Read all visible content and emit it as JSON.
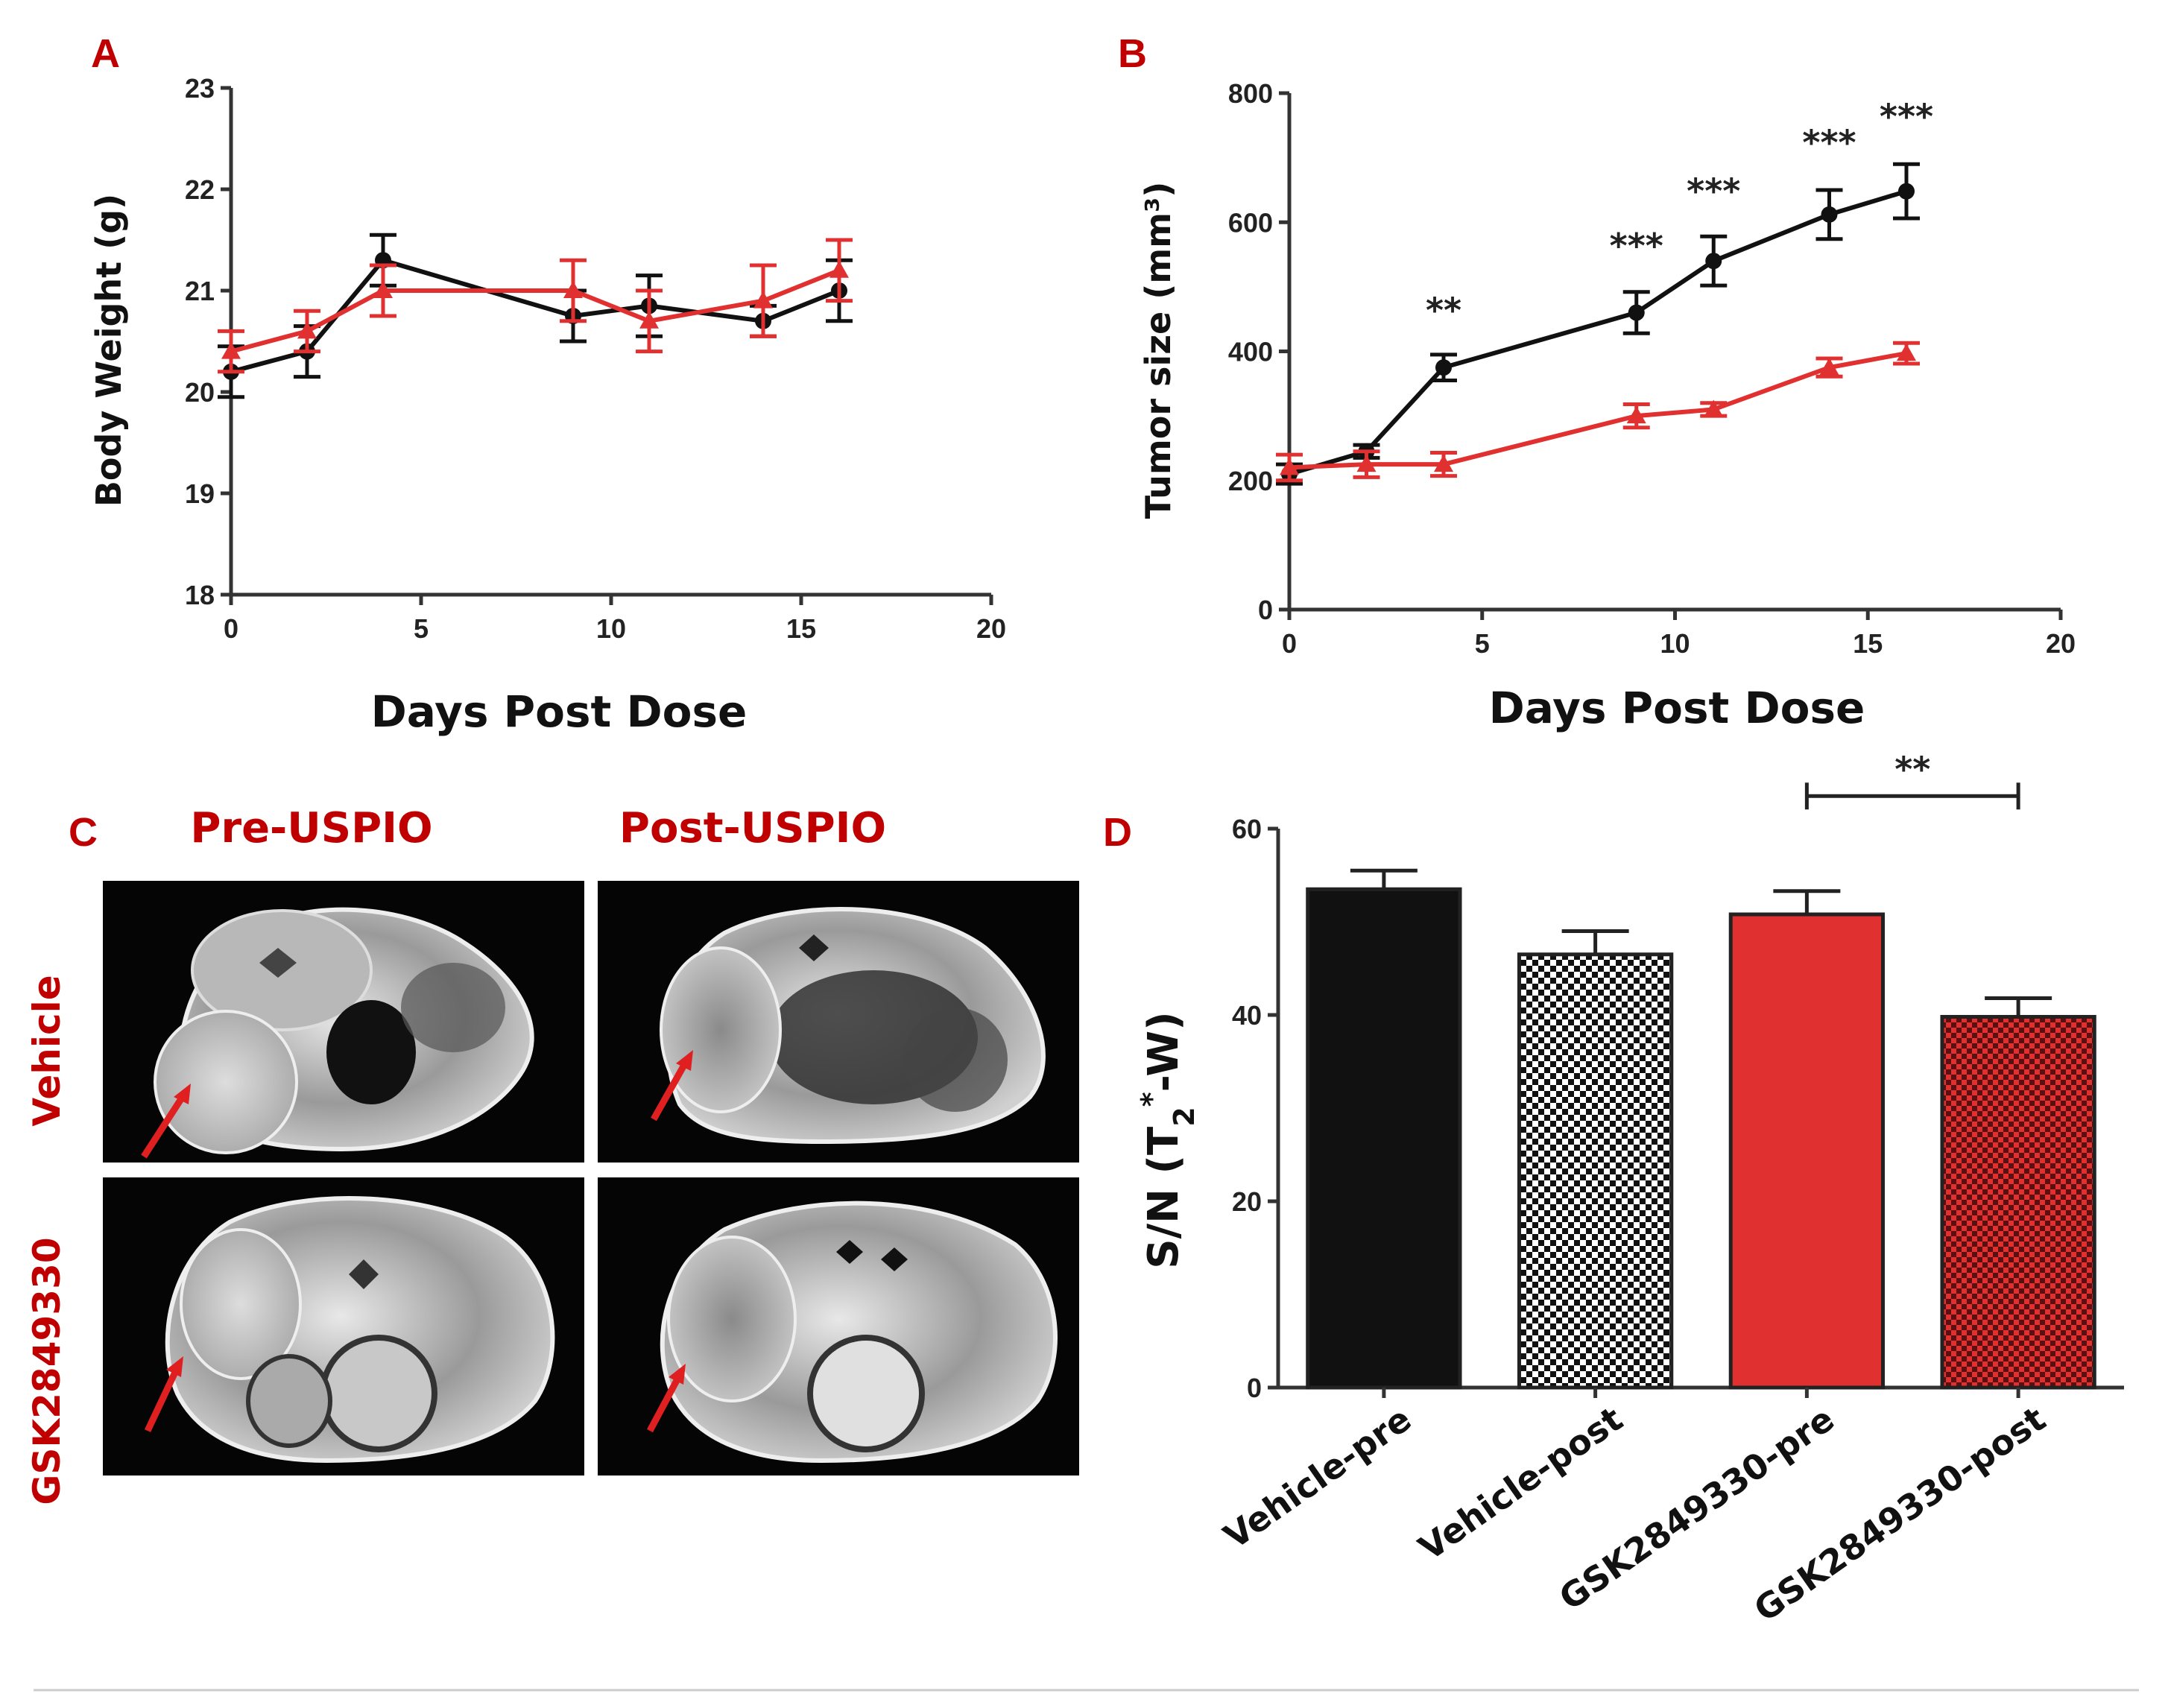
{
  "panels": {
    "a": "A",
    "b": "B",
    "c": "C",
    "d": "D"
  },
  "colors": {
    "vehicle": "#111111",
    "treated": "#e03030",
    "label_red": "#c00000"
  },
  "chart_data": [
    {
      "id": "A",
      "type": "line",
      "xlabel": "Days Post Dose",
      "ylabel": "Body Weight (g)",
      "xlim": [
        0,
        20
      ],
      "ylim": [
        18,
        23
      ],
      "xticks": [
        0,
        5,
        10,
        15,
        20
      ],
      "yticks": [
        18,
        19,
        20,
        21,
        22,
        23
      ],
      "series": [
        {
          "name": "Vehicle",
          "color": "#111111",
          "marker": "circle",
          "x": [
            0,
            2,
            4,
            9,
            11,
            14,
            16
          ],
          "y": [
            20.2,
            20.4,
            21.3,
            20.75,
            20.85,
            20.7,
            21.0
          ],
          "err": [
            0.25,
            0.25,
            0.25,
            0.25,
            0.3,
            0.15,
            0.3
          ]
        },
        {
          "name": "GSK2849330",
          "color": "#e03030",
          "marker": "triangle",
          "x": [
            0,
            2,
            4,
            9,
            11,
            14,
            16
          ],
          "y": [
            20.4,
            20.6,
            21.0,
            21.0,
            20.7,
            20.9,
            21.2
          ],
          "err": [
            0.2,
            0.2,
            0.25,
            0.3,
            0.3,
            0.35,
            0.3
          ]
        }
      ]
    },
    {
      "id": "B",
      "type": "line",
      "xlabel": "Days Post Dose",
      "ylabel": "Tumor size (mm³)",
      "xlim": [
        0,
        20
      ],
      "ylim": [
        0,
        800
      ],
      "xticks": [
        0,
        5,
        10,
        15,
        20
      ],
      "yticks": [
        0,
        200,
        400,
        600,
        800
      ],
      "series": [
        {
          "name": "Vehicle",
          "color": "#111111",
          "marker": "circle",
          "x": [
            0,
            2,
            4,
            9,
            11,
            14,
            16
          ],
          "y": [
            210,
            245,
            375,
            460,
            540,
            612,
            648
          ],
          "err": [
            15,
            10,
            20,
            32,
            38,
            38,
            42
          ]
        },
        {
          "name": "GSK2849330",
          "color": "#e03030",
          "marker": "triangle",
          "x": [
            0,
            2,
            4,
            9,
            11,
            14,
            16
          ],
          "y": [
            220,
            225,
            225,
            300,
            310,
            375,
            397
          ],
          "err": [
            20,
            20,
            18,
            18,
            10,
            14,
            16
          ]
        }
      ],
      "annotations": [
        {
          "x": 4,
          "y": 445,
          "text": "**"
        },
        {
          "x": 9,
          "y": 545,
          "text": "***"
        },
        {
          "x": 11,
          "y": 630,
          "text": "***"
        },
        {
          "x": 14,
          "y": 705,
          "text": "***"
        },
        {
          "x": 16,
          "y": 745,
          "text": "***"
        }
      ]
    },
    {
      "id": "D",
      "type": "bar",
      "ylabel_main": "S/N (T",
      "ylabel_sub": "2",
      "ylabel_sup": "*",
      "ylabel_tail": "-W)",
      "ylim": [
        0,
        60
      ],
      "yticks": [
        0,
        20,
        40,
        60
      ],
      "categories": [
        "Vehicle-pre",
        "Vehicle-post",
        "GSK2849330-pre",
        "GSK2849330-post"
      ],
      "values": [
        53.5,
        46.5,
        50.8,
        39.8
      ],
      "err": [
        2.0,
        2.5,
        2.5,
        2.0
      ],
      "fills": [
        "solid-black",
        "check-black",
        "solid-red",
        "check-red"
      ],
      "significance": {
        "from": 2,
        "to": 3,
        "y": 63.5,
        "text": "**"
      }
    }
  ],
  "mri": {
    "col_headers": [
      "Pre-USPIO",
      "Post-USPIO"
    ],
    "row_labels": [
      "Vehicle",
      "GSK2849330"
    ]
  }
}
